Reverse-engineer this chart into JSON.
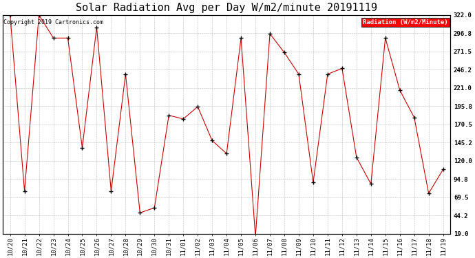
{
  "title": "Solar Radiation Avg per Day W/m2/minute 20191119",
  "copyright_text": "Copyright 2019 Cartronics.com",
  "legend_label": "Radiation (W/m2/Minute)",
  "legend_bg": "#ff0000",
  "legend_text_color": "#ffffff",
  "background_color": "#ffffff",
  "plot_bg": "#ffffff",
  "grid_color": "#aaaaaa",
  "line_color": "#cc0000",
  "marker_color": "#000000",
  "dates": [
    "10/20",
    "10/21",
    "10/22",
    "10/23",
    "10/24",
    "10/25",
    "10/26",
    "10/27",
    "10/28",
    "10/29",
    "10/30",
    "10/31",
    "11/01",
    "11/02",
    "11/03",
    "11/04",
    "11/05",
    "11/06",
    "11/07",
    "11/08",
    "11/09",
    "11/10",
    "11/11",
    "11/12",
    "11/13",
    "11/14",
    "11/15",
    "11/16",
    "11/17",
    "11/18",
    "11/19"
  ],
  "values": [
    322.0,
    78.0,
    322.0,
    290.0,
    290.0,
    138.0,
    305.0,
    78.0,
    240.0,
    48.0,
    55.0,
    183.0,
    178.0,
    195.0,
    148.0,
    130.0,
    290.0,
    15.0,
    296.0,
    270.0,
    240.0,
    90.0,
    240.0,
    248.0,
    125.0,
    88.0,
    290.0,
    218.0,
    180.0,
    75.0,
    108.0
  ],
  "yticks": [
    19.0,
    44.2,
    69.5,
    94.8,
    120.0,
    145.2,
    170.5,
    195.8,
    221.0,
    246.2,
    271.5,
    296.8,
    322.0
  ],
  "ytick_labels": [
    "19.0",
    "44.2",
    "69.5",
    "94.8",
    "120.0",
    "145.2",
    "170.5",
    "195.8",
    "221.0",
    "246.2",
    "271.5",
    "296.8",
    "322.0"
  ],
  "ylim": [
    19.0,
    322.0
  ],
  "title_fontsize": 11,
  "tick_fontsize": 6.5,
  "copyright_fontsize": 6,
  "legend_fontsize": 6.5
}
